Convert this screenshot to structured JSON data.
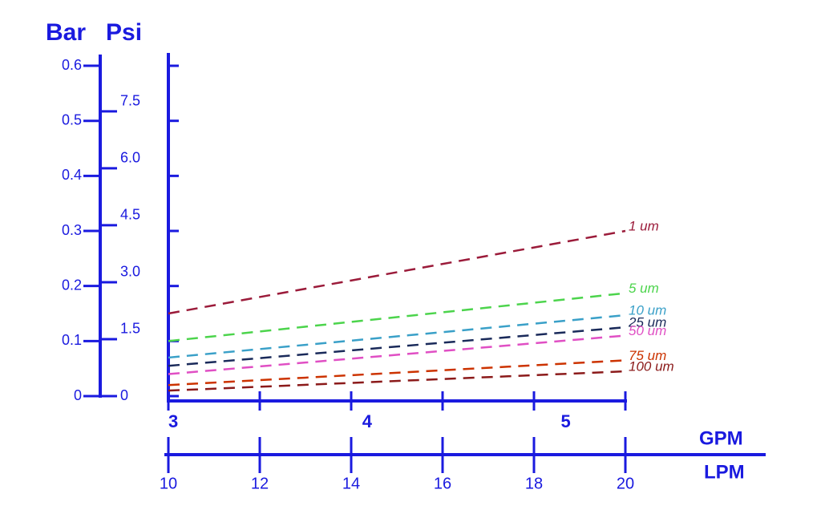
{
  "chart_data": {
    "type": "line",
    "y_label": "Bar",
    "y2_label": "Psi",
    "x_label": "LPM",
    "x2_label": "GPM",
    "xlim": [
      10,
      20
    ],
    "xticks": [
      10,
      12,
      14,
      16,
      18,
      20
    ],
    "x2lim": [
      3,
      5.3
    ],
    "x2ticks": [
      3,
      4,
      5
    ],
    "ylim": [
      0,
      0.62
    ],
    "yticks": [
      0,
      0.1,
      0.2,
      0.3,
      0.4,
      0.5,
      0.6
    ],
    "y2lim": [
      0,
      8.99
    ],
    "y2ticks": [
      0,
      1.5,
      {
        "value": 3,
        "label": "3.0"
      },
      4.5,
      {
        "value": 6,
        "label": "6.0"
      },
      7.5
    ],
    "dashed": true,
    "x": [
      10,
      20
    ],
    "series": [
      {
        "name": "1 um",
        "color": "#9b1b3a",
        "values": [
          0.15,
          0.3
        ]
      },
      {
        "name": "5 um",
        "color": "#4cd44c",
        "values": [
          0.1,
          0.187
        ]
      },
      {
        "name": "10 um",
        "color": "#3aa0c8",
        "values": [
          0.07,
          0.147
        ]
      },
      {
        "name": "25 um",
        "color": "#1a2a5a",
        "values": [
          0.055,
          0.125
        ]
      },
      {
        "name": "50 um",
        "color": "#e04fc4",
        "values": [
          0.04,
          0.11
        ]
      },
      {
        "name": "75 um",
        "color": "#cc3300",
        "values": [
          0.02,
          0.065
        ]
      },
      {
        "name": "100 um",
        "color": "#8b1a1a",
        "values": [
          0.01,
          0.045
        ]
      }
    ]
  }
}
